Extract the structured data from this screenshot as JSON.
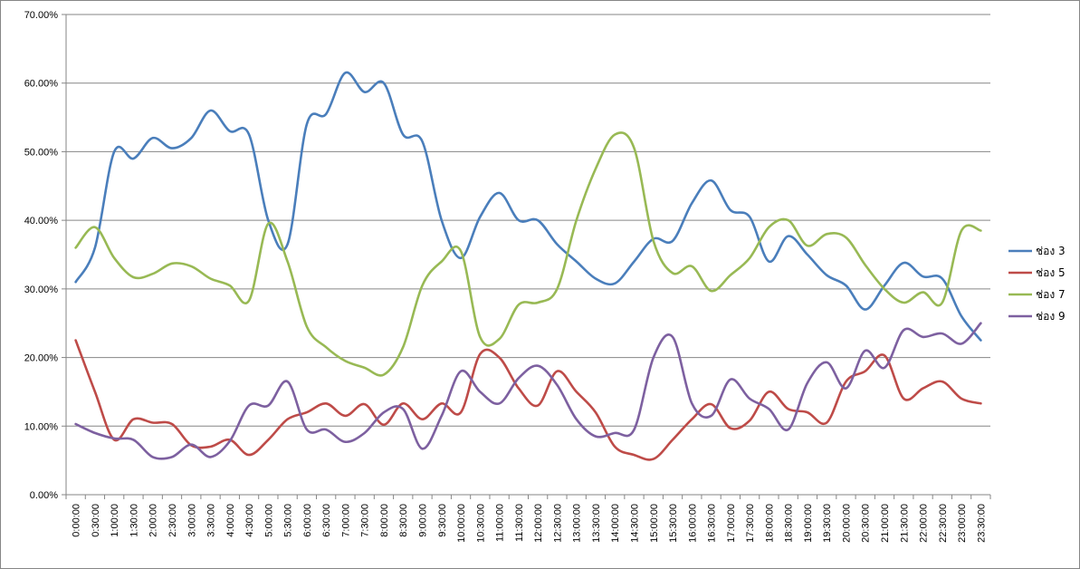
{
  "chart_data": {
    "type": "line",
    "title": "",
    "xlabel": "",
    "ylabel": "",
    "ylim": [
      0,
      0.7
    ],
    "y_tick_labels": [
      "0.00%",
      "10.00%",
      "20.00%",
      "30.00%",
      "40.00%",
      "50.00%",
      "60.00%",
      "70.00%"
    ],
    "grid": "horizontal",
    "legend_position": "right",
    "categories": [
      "0:00:00",
      "0:30:00",
      "1:00:00",
      "1:30:00",
      "2:00:00",
      "2:30:00",
      "3:00:00",
      "3:30:00",
      "4:00:00",
      "4:30:00",
      "5:00:00",
      "5:30:00",
      "6:00:00",
      "6:30:00",
      "7:00:00",
      "7:30:00",
      "8:00:00",
      "8:30:00",
      "9:00:00",
      "9:30:00",
      "10:00:00",
      "10:30:00",
      "11:00:00",
      "11:30:00",
      "12:00:00",
      "12:30:00",
      "13:00:00",
      "13:30:00",
      "14:00:00",
      "14:30:00",
      "15:00:00",
      "15:30:00",
      "16:00:00",
      "16:30:00",
      "17:00:00",
      "17:30:00",
      "18:00:00",
      "18:30:00",
      "19:00:00",
      "19:30:00",
      "20:00:00",
      "20:30:00",
      "21:00:00",
      "21:30:00",
      "22:00:00",
      "22:30:00",
      "23:00:00",
      "23:30:00"
    ],
    "series": [
      {
        "name": "ช่อง 3",
        "color": "#4a7ebb",
        "values": [
          0.31,
          0.36,
          0.5,
          0.49,
          0.52,
          0.505,
          0.52,
          0.56,
          0.53,
          0.525,
          0.4,
          0.365,
          0.54,
          0.555,
          0.615,
          0.587,
          0.6,
          0.525,
          0.515,
          0.4,
          0.345,
          0.405,
          0.44,
          0.4,
          0.4,
          0.365,
          0.34,
          0.315,
          0.308,
          0.34,
          0.373,
          0.37,
          0.425,
          0.458,
          0.415,
          0.405,
          0.34,
          0.377,
          0.35,
          0.32,
          0.305,
          0.27,
          0.305,
          0.338,
          0.318,
          0.315,
          0.26,
          0.225
        ]
      },
      {
        "name": "ช่อง 5",
        "color": "#be4b48",
        "values": [
          0.225,
          0.15,
          0.08,
          0.11,
          0.105,
          0.103,
          0.072,
          0.07,
          0.08,
          0.058,
          0.08,
          0.11,
          0.12,
          0.133,
          0.115,
          0.132,
          0.102,
          0.133,
          0.11,
          0.133,
          0.12,
          0.205,
          0.2,
          0.155,
          0.13,
          0.18,
          0.15,
          0.12,
          0.07,
          0.058,
          0.052,
          0.08,
          0.11,
          0.132,
          0.097,
          0.108,
          0.15,
          0.125,
          0.12,
          0.105,
          0.165,
          0.18,
          0.203,
          0.14,
          0.155,
          0.165,
          0.14,
          0.133
        ]
      },
      {
        "name": "ช่อง 7",
        "color": "#98b954",
        "values": [
          0.36,
          0.39,
          0.345,
          0.317,
          0.322,
          0.337,
          0.333,
          0.315,
          0.305,
          0.283,
          0.395,
          0.34,
          0.245,
          0.215,
          0.195,
          0.185,
          0.175,
          0.215,
          0.305,
          0.34,
          0.355,
          0.23,
          0.227,
          0.277,
          0.28,
          0.3,
          0.4,
          0.475,
          0.525,
          0.505,
          0.37,
          0.323,
          0.333,
          0.297,
          0.32,
          0.345,
          0.39,
          0.4,
          0.363,
          0.38,
          0.375,
          0.335,
          0.3,
          0.28,
          0.295,
          0.28,
          0.385,
          0.385
        ]
      },
      {
        "name": "ช่อง 9",
        "color": "#7d60a0",
        "values": [
          0.103,
          0.09,
          0.082,
          0.08,
          0.055,
          0.055,
          0.073,
          0.055,
          0.078,
          0.13,
          0.13,
          0.165,
          0.095,
          0.095,
          0.077,
          0.09,
          0.12,
          0.125,
          0.067,
          0.115,
          0.18,
          0.15,
          0.133,
          0.17,
          0.188,
          0.16,
          0.11,
          0.085,
          0.09,
          0.095,
          0.2,
          0.23,
          0.133,
          0.115,
          0.168,
          0.14,
          0.125,
          0.095,
          0.163,
          0.193,
          0.155,
          0.21,
          0.185,
          0.24,
          0.23,
          0.235,
          0.22,
          0.25
        ]
      }
    ]
  }
}
